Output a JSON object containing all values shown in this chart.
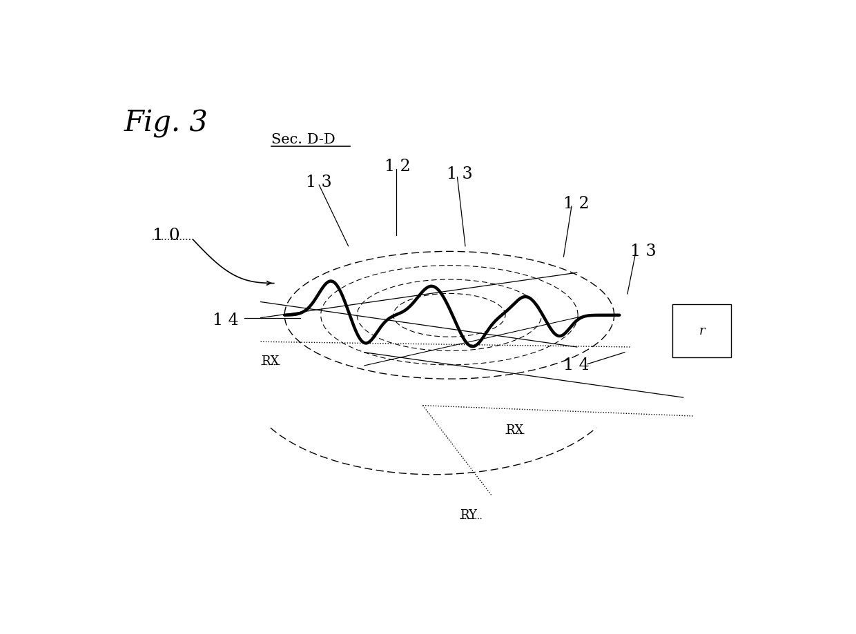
{
  "title": "Fig. 3",
  "sec_label": "Sec. D-D",
  "bg_color": "#ffffff",
  "line_color": "#000000",
  "label_10": "1 0",
  "label_12": "1 2",
  "label_13": "1 3",
  "label_14": "1 4",
  "label_RX": "RX",
  "label_RY": "RY",
  "label_r": "r"
}
